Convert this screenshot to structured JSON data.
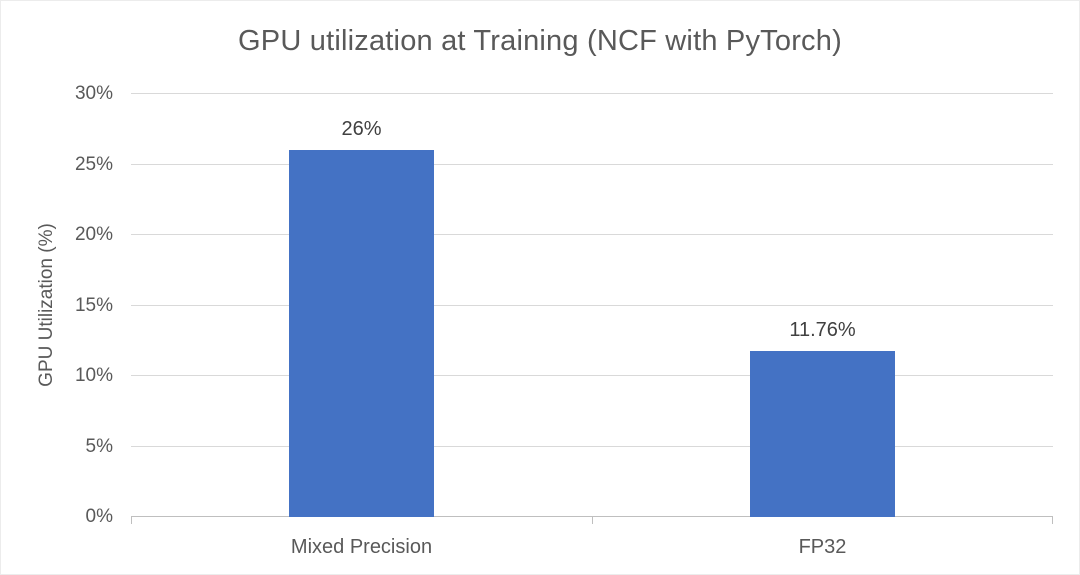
{
  "chart_data": {
    "type": "bar",
    "title": "GPU utilization at Training (NCF with PyTorch)",
    "categories": [
      "Mixed Precision",
      "FP32"
    ],
    "values": [
      26,
      11.76
    ],
    "data_labels": [
      "26%",
      "11.76%"
    ],
    "xlabel": "",
    "ylabel": "GPU Utilization (%)",
    "ylim": [
      0,
      30
    ],
    "yticks": [
      0,
      5,
      10,
      15,
      20,
      25,
      30
    ],
    "ytick_labels": [
      "0%",
      "5%",
      "10%",
      "15%",
      "20%",
      "25%",
      "30%"
    ],
    "grid": "horizontal",
    "legend": "none",
    "colors": {
      "bar": "#4472C4",
      "gridline": "#D9D9D9",
      "axis_line": "#BFBFBF",
      "title_text": "#595959",
      "tick_text": "#595959",
      "data_label_text": "#404040",
      "background": "#FFFFFF"
    }
  }
}
